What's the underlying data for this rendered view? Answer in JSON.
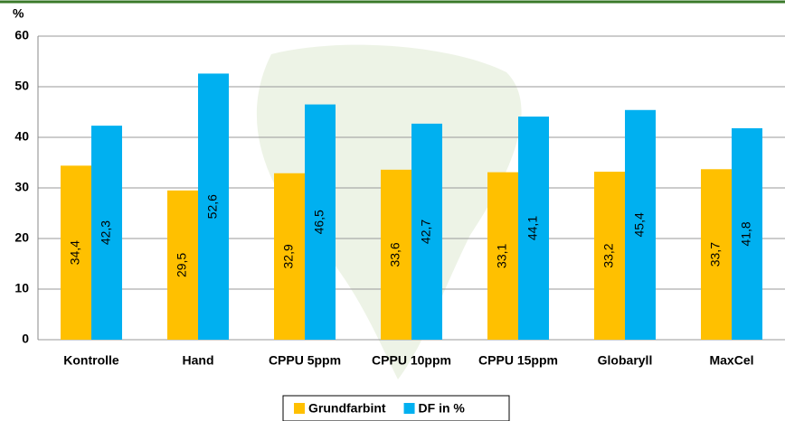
{
  "chart_data": {
    "type": "bar",
    "y_label": "%",
    "categories": [
      "Kontrolle",
      "Hand",
      "CPPU 5ppm",
      "CPPU 10ppm",
      "CPPU 15ppm",
      "Globaryll",
      "MaxCel"
    ],
    "series": [
      {
        "name": "Grundfarbint",
        "color": "#FFC000",
        "values": [
          34.4,
          29.5,
          32.9,
          33.6,
          33.1,
          33.2,
          33.7
        ],
        "value_labels": [
          "34,4",
          "29,5",
          "32,9",
          "33,6",
          "33,1",
          "33,2",
          "33,7"
        ]
      },
      {
        "name": "DF in %",
        "color": "#00B0F0",
        "values": [
          42.3,
          52.6,
          46.5,
          42.7,
          44.1,
          45.4,
          41.8
        ],
        "value_labels": [
          "42,3",
          "52,6",
          "46,5",
          "42,7",
          "44,1",
          "45,4",
          "41,8"
        ]
      }
    ],
    "ylim": [
      0,
      60
    ],
    "yticks": [
      0,
      10,
      20,
      30,
      40,
      50,
      60
    ],
    "grid": true,
    "legend": "bottom"
  }
}
